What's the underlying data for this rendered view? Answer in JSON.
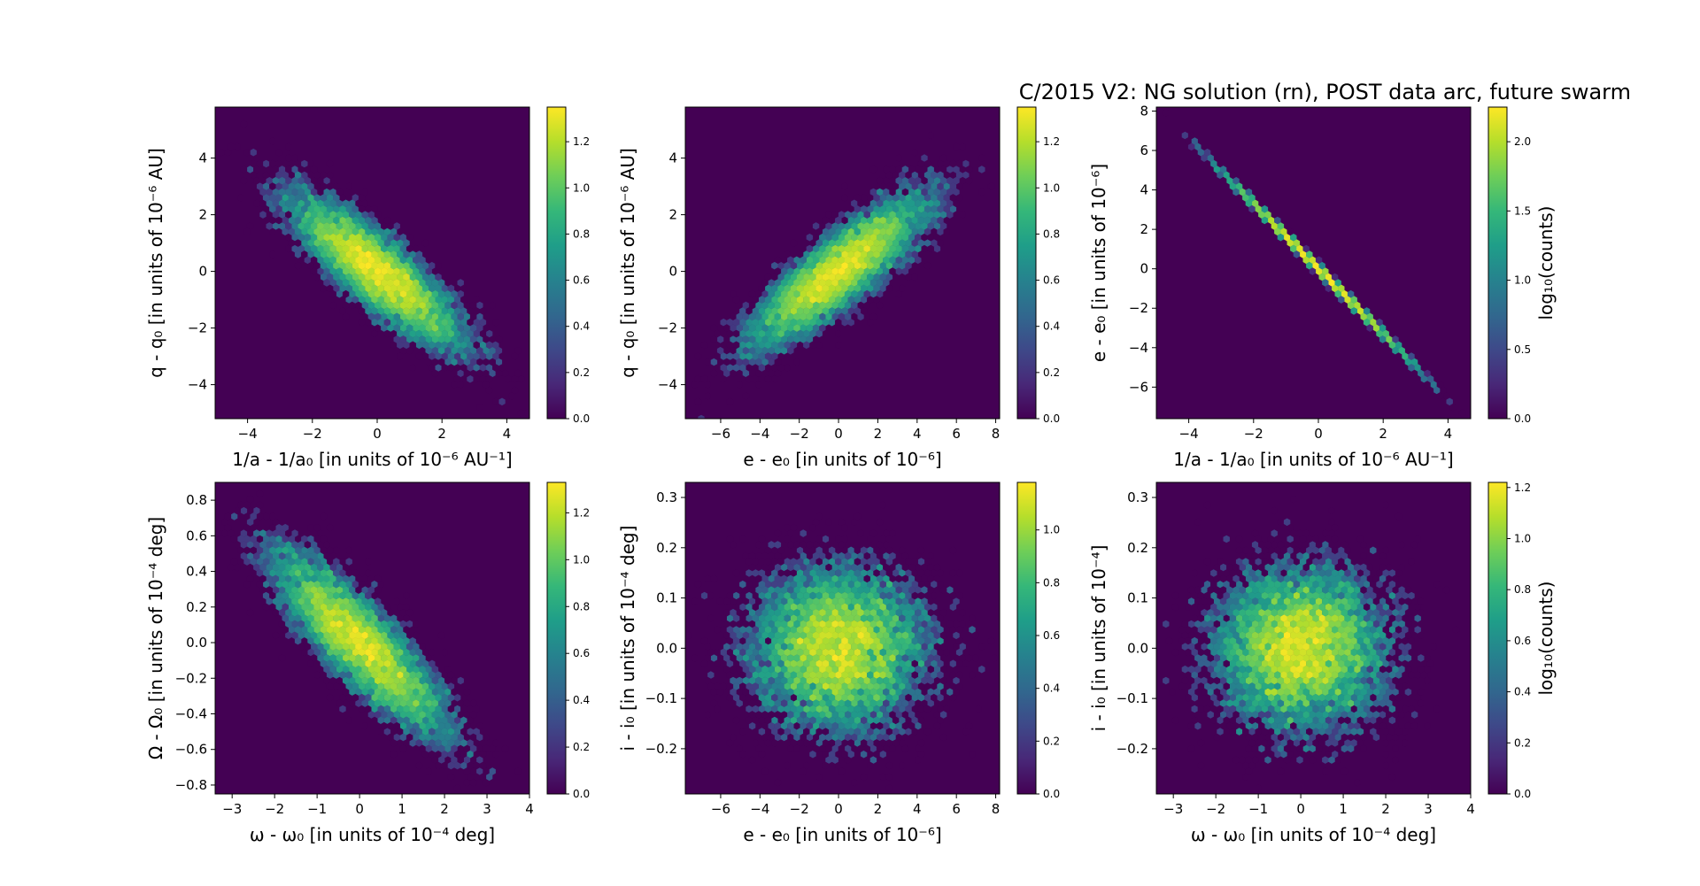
{
  "figure_title": "C/2015 V2: NG solution (rn), POST data arc,  future swarm",
  "colormap": [
    "#440154",
    "#482878",
    "#3e4989",
    "#31688e",
    "#26828e",
    "#1f9e89",
    "#35b779",
    "#6ece58",
    "#b5de2b",
    "#fde725"
  ],
  "background_color": "#440154",
  "chart_data": [
    {
      "type": "heatmap",
      "subtype": "hexbin",
      "xlabel": "1/a - 1/a₀ [in units of 10⁻⁶ AU⁻¹]",
      "ylabel": "q - q₀ [in units of 10⁻⁶ AU]",
      "xlim": [
        -5,
        4.7
      ],
      "ylim": [
        -5.2,
        5.8
      ],
      "xticks": [
        -4,
        -2,
        0,
        2,
        4
      ],
      "xticklabels": [
        "−4",
        "−2",
        "0",
        "2",
        "4"
      ],
      "yticks": [
        -4,
        -2,
        0,
        2,
        4
      ],
      "yticklabels": [
        "−4",
        "−2",
        "0",
        "2",
        "4"
      ],
      "distribution": {
        "mean": [
          0,
          0
        ],
        "sigma": [
          1.3,
          1.3
        ],
        "correlation": -0.85
      },
      "colorbar": {
        "label": "",
        "range": [
          0,
          1.35
        ],
        "ticks": [
          0.0,
          0.2,
          0.4,
          0.6,
          0.8,
          1.0,
          1.2
        ],
        "ticklabels": [
          "0.0",
          "0.2",
          "0.4",
          "0.6",
          "0.8",
          "1.0",
          "1.2"
        ]
      }
    },
    {
      "type": "heatmap",
      "subtype": "hexbin",
      "xlabel": "e - e₀ [in units of 10⁻⁶]",
      "ylabel": "q - q₀ [in units of 10⁻⁶ AU]",
      "xlim": [
        -7.8,
        8.2
      ],
      "ylim": [
        -5.2,
        5.8
      ],
      "xticks": [
        -6,
        -4,
        -2,
        0,
        2,
        4,
        6,
        8
      ],
      "xticklabels": [
        "−6",
        "−4",
        "−2",
        "0",
        "2",
        "4",
        "6",
        "8"
      ],
      "yticks": [
        -4,
        -2,
        0,
        2,
        4
      ],
      "yticklabels": [
        "−4",
        "−2",
        "0",
        "2",
        "4"
      ],
      "distribution": {
        "mean": [
          0,
          0
        ],
        "sigma": [
          2.2,
          1.3
        ],
        "correlation": 0.85
      },
      "colorbar": {
        "label": "",
        "range": [
          0,
          1.35
        ],
        "ticks": [
          0.0,
          0.2,
          0.4,
          0.6,
          0.8,
          1.0,
          1.2
        ],
        "ticklabels": [
          "0.0",
          "0.2",
          "0.4",
          "0.6",
          "0.8",
          "1.0",
          "1.2"
        ]
      }
    },
    {
      "type": "heatmap",
      "subtype": "hexbin",
      "xlabel": "1/a - 1/a₀ [in units of 10⁻⁶ AU⁻¹]",
      "ylabel": "e - e₀ [in units of 10⁻⁶]",
      "xlim": [
        -5,
        4.7
      ],
      "ylim": [
        -7.6,
        8.2
      ],
      "xticks": [
        -4,
        -2,
        0,
        2,
        4
      ],
      "xticklabels": [
        "−4",
        "−2",
        "0",
        "2",
        "4"
      ],
      "yticks": [
        -6,
        -4,
        -2,
        0,
        2,
        4,
        6,
        8
      ],
      "yticklabels": [
        "−6",
        "−4",
        "−2",
        "0",
        "2",
        "4",
        "6",
        "8"
      ],
      "distribution": {
        "mean": [
          0,
          0
        ],
        "sigma": [
          1.3,
          2.15
        ],
        "correlation": -0.9995
      },
      "colorbar": {
        "label": "log₁₀(counts)",
        "range": [
          0,
          2.25
        ],
        "ticks": [
          0.0,
          0.5,
          1.0,
          1.5,
          2.0
        ],
        "ticklabels": [
          "0.0",
          "0.5",
          "1.0",
          "1.5",
          "2.0"
        ]
      }
    },
    {
      "type": "heatmap",
      "subtype": "hexbin",
      "xlabel": "ω - ω₀ [in units of 10⁻⁴ deg]",
      "ylabel": "Ω - Ω₀ [in units of 10⁻⁴ deg]",
      "xlim": [
        -3.4,
        4.0
      ],
      "ylim": [
        -0.85,
        0.9
      ],
      "xticks": [
        -3,
        -2,
        -1,
        0,
        1,
        2,
        3,
        4
      ],
      "xticklabels": [
        "−3",
        "−2",
        "−1",
        "0",
        "1",
        "2",
        "3",
        "4"
      ],
      "yticks": [
        -0.8,
        -0.6,
        -0.4,
        -0.2,
        0.0,
        0.2,
        0.4,
        0.6,
        0.8
      ],
      "yticklabels": [
        "−0.8",
        "−0.6",
        "−0.4",
        "−0.2",
        "0.0",
        "0.2",
        "0.4",
        "0.6",
        "0.8"
      ],
      "distribution": {
        "mean": [
          0,
          0
        ],
        "sigma": [
          1.0,
          0.25
        ],
        "correlation": -0.85
      },
      "colorbar": {
        "label": "",
        "range": [
          0,
          1.33
        ],
        "ticks": [
          0.0,
          0.2,
          0.4,
          0.6,
          0.8,
          1.0,
          1.2
        ],
        "ticklabels": [
          "0.0",
          "0.2",
          "0.4",
          "0.6",
          "0.8",
          "1.0",
          "1.2"
        ]
      }
    },
    {
      "type": "heatmap",
      "subtype": "hexbin",
      "xlabel": "e - e₀ [in units of 10⁻⁶]",
      "ylabel": "i - i₀ [in units of 10⁻⁴ deg]",
      "xlim": [
        -7.8,
        8.2
      ],
      "ylim": [
        -0.29,
        0.33
      ],
      "xticks": [
        -6,
        -4,
        -2,
        0,
        2,
        4,
        6,
        8
      ],
      "xticklabels": [
        "−6",
        "−4",
        "−2",
        "0",
        "2",
        "4",
        "6",
        "8"
      ],
      "yticks": [
        -0.2,
        -0.1,
        0.0,
        0.1,
        0.2,
        0.3
      ],
      "yticklabels": [
        "−0.2",
        "−0.1",
        "0.0",
        "0.1",
        "0.2",
        "0.3"
      ],
      "distribution": {
        "mean": [
          0,
          0
        ],
        "sigma": [
          2.2,
          0.08
        ],
        "correlation": 0.0
      },
      "colorbar": {
        "label": "",
        "range": [
          0,
          1.18
        ],
        "ticks": [
          0.0,
          0.2,
          0.4,
          0.6,
          0.8,
          1.0
        ],
        "ticklabels": [
          "0.0",
          "0.2",
          "0.4",
          "0.6",
          "0.8",
          "1.0"
        ]
      }
    },
    {
      "type": "heatmap",
      "subtype": "hexbin",
      "xlabel": "ω - ω₀ [in units of 10⁻⁴ deg]",
      "ylabel": "i - i₀ [in units of 10⁻⁴]",
      "xlim": [
        -3.4,
        4.0
      ],
      "ylim": [
        -0.29,
        0.33
      ],
      "xticks": [
        -3,
        -2,
        -1,
        0,
        1,
        2,
        3,
        4
      ],
      "xticklabels": [
        "−3",
        "−2",
        "−1",
        "0",
        "1",
        "2",
        "3",
        "4"
      ],
      "yticks": [
        -0.2,
        -0.1,
        0.0,
        0.1,
        0.2,
        0.3
      ],
      "yticklabels": [
        "−0.2",
        "−0.1",
        "0.0",
        "0.1",
        "0.2",
        "0.3"
      ],
      "distribution": {
        "mean": [
          0,
          0
        ],
        "sigma": [
          1.0,
          0.08
        ],
        "correlation": 0.0
      },
      "colorbar": {
        "label": "log₁₀(counts)",
        "range": [
          0,
          1.22
        ],
        "ticks": [
          0.0,
          0.2,
          0.4,
          0.6,
          0.8,
          1.0,
          1.2
        ],
        "ticklabels": [
          "0.0",
          "0.2",
          "0.4",
          "0.6",
          "0.8",
          "1.0",
          "1.2"
        ]
      }
    }
  ]
}
